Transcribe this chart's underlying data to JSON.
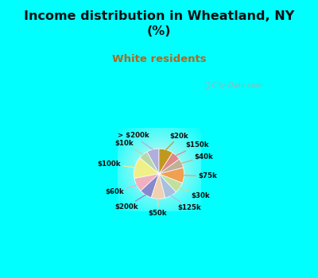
{
  "title": "Income distribution in Wheatland, NY\n(%)",
  "subtitle": "White residents",
  "title_color": "#111111",
  "subtitle_color": "#b06820",
  "bg_color": "#00ffff",
  "labels": [
    "> $200k",
    "$10k",
    "$100k",
    "$60k",
    "$200k",
    "$50k",
    "$125k",
    "$30k",
    "$75k",
    "$40k",
    "$150k",
    "$20k"
  ],
  "values": [
    8,
    6,
    14,
    9,
    8,
    9,
    8,
    7,
    10,
    6,
    6,
    9
  ],
  "colors": [
    "#b0aedd",
    "#b8d8a8",
    "#f0f088",
    "#f0b0c0",
    "#8888cc",
    "#f0d0b0",
    "#a8c0e0",
    "#c0e0a0",
    "#f0a050",
    "#c0b098",
    "#e08888",
    "#c09820"
  ],
  "startangle": 90,
  "watermark": "City-Data.com"
}
